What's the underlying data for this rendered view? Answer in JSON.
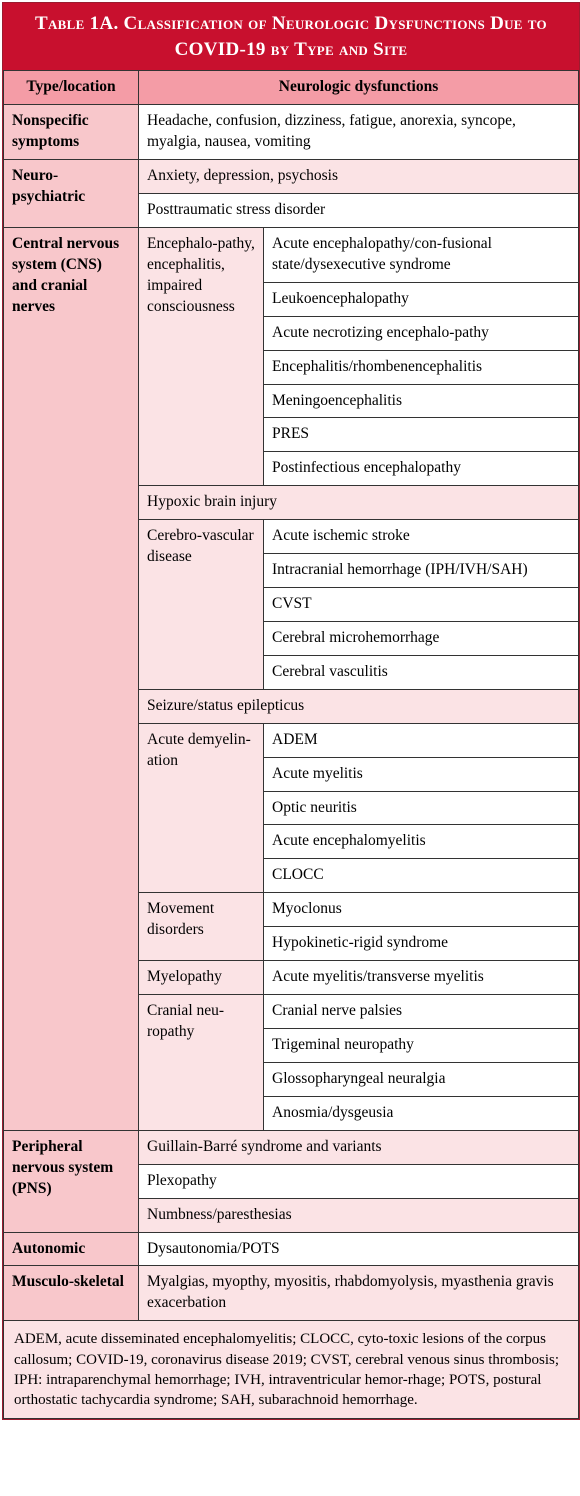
{
  "title": "Table 1A. Classification of Neurologic Dysfunctions Due to COVID-19 by Type and Site",
  "headers": {
    "left": "Type/location",
    "right": "Neurologic dysfunctions"
  },
  "nonspecific": {
    "label": "Nonspecific symptoms",
    "text": "Headache, confusion, dizziness, fatigue, anorexia, syncope, myalgia, nausea, vomiting"
  },
  "neuropsych": {
    "label": "Neuro-psychiatric",
    "r1": "Anxiety, depression, psychosis",
    "r2": "Posttraumatic stress disorder"
  },
  "cns": {
    "label": "Central nervous system (CNS) and cranial nerves",
    "enceph": {
      "label": "Encephalo-pathy, encephalitis, impaired consciousness",
      "items": [
        "Acute encephalopathy/con-fusional state/dysexecutive syndrome",
        "Leukoencephalopathy",
        "Acute necrotizing encephalo-pathy",
        "Encephalitis/rhombenencephalitis",
        "Meningoencephalitis",
        "PRES",
        "Postinfectious encephalopathy"
      ]
    },
    "hypoxic": "Hypoxic brain injury",
    "cerebro": {
      "label": "Cerebro-vascular disease",
      "items": [
        "Acute ischemic stroke",
        "Intracranial hemorrhage (IPH/IVH/SAH)",
        "CVST",
        "Cerebral microhemorrhage",
        "Cerebral vasculitis"
      ]
    },
    "seizure": "Seizure/status epilepticus",
    "demyelin": {
      "label": "Acute demyelin-ation",
      "items": [
        "ADEM",
        "Acute myelitis",
        "Optic neuritis",
        "Acute encephalomyelitis",
        "CLOCC"
      ]
    },
    "movement": {
      "label": "Movement disorders",
      "items": [
        "Myoclonus",
        "Hypokinetic-rigid syndrome"
      ]
    },
    "myelopathy": {
      "label": "Myelopathy",
      "items": [
        "Acute myelitis/transverse myelitis"
      ]
    },
    "cranial": {
      "label": "Cranial neu-ropathy",
      "items": [
        "Cranial nerve palsies",
        "Trigeminal neuropathy",
        "Glossopharyngeal neuralgia",
        "Anosmia/dysgeusia"
      ]
    }
  },
  "pns": {
    "label": "Peripheral nervous system (PNS)",
    "items": [
      "Guillain-Barré syndrome and variants",
      "Plexopathy",
      "Numbness/paresthesias"
    ]
  },
  "autonomic": {
    "label": "Autonomic",
    "text": "Dysautonomia/POTS"
  },
  "musculo": {
    "label": "Musculo-skeletal",
    "text": "Myalgias, myopthy, myositis, rhabdomyolysis, myasthenia gravis exacerbation"
  },
  "footnote": "ADEM, acute disseminated encephalomyelitis; CLOCC, cyto-toxic lesions of the corpus callosum; COVID-19, coronavirus disease 2019; CVST, cerebral venous sinus thrombosis; IPH: intraparenchymal hemorrhage; IVH, intraventricular hemor-rhage; POTS, postural orthostatic tachycardia syndrome; SAH, subarachnoid hemorrhage."
}
